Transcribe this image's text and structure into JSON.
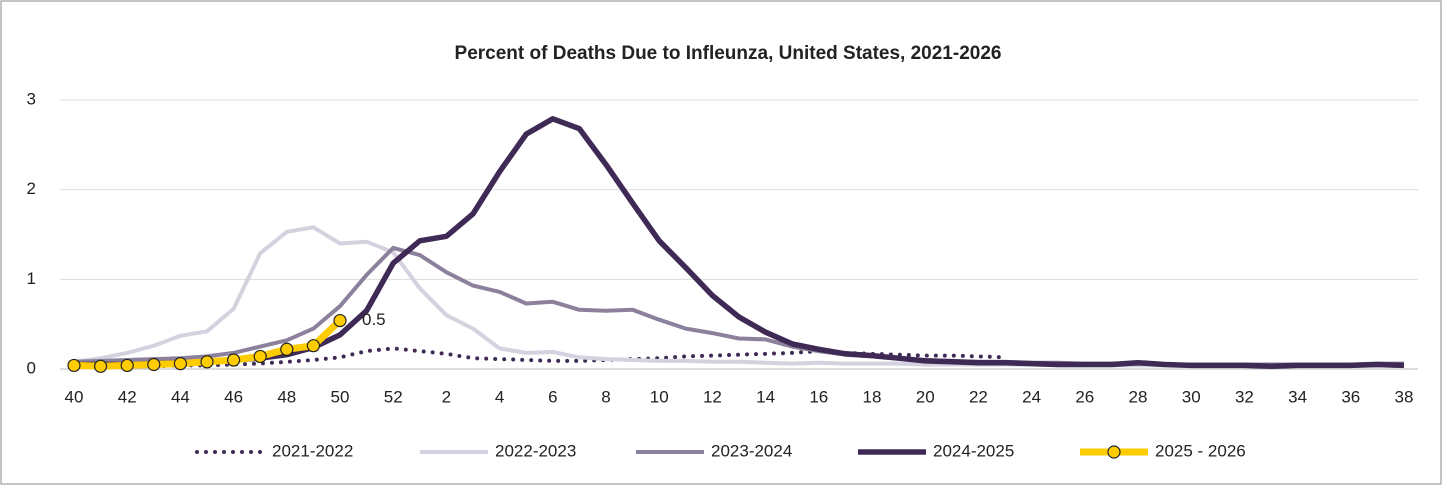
{
  "chart_data": {
    "type": "line",
    "title": "Percent of Deaths Due to Infleunza, United States, 2021-2026",
    "categories": [
      "40",
      null,
      "42",
      null,
      "44",
      null,
      "46",
      null,
      "48",
      null,
      "50",
      null,
      "52",
      null,
      "2",
      null,
      "4",
      null,
      "6",
      null,
      "8",
      null,
      "10",
      null,
      "12",
      null,
      "14",
      null,
      "16",
      null,
      "18",
      null,
      "20",
      null,
      "22",
      null,
      "24",
      null,
      "26",
      null,
      "28",
      null,
      "30",
      null,
      "32",
      null,
      "34",
      null,
      "36",
      null,
      "38"
    ],
    "ylim": [
      0,
      3
    ],
    "yticks": [
      0,
      1,
      2,
      3
    ],
    "grid": true,
    "legend": "bottom",
    "series": [
      {
        "name": "2021-2022",
        "color": "#3f2a56",
        "style": "dotted",
        "values": [
          0.03,
          0.03,
          0.03,
          0.03,
          0.04,
          0.04,
          0.05,
          0.06,
          0.08,
          0.1,
          0.13,
          0.2,
          0.23,
          0.2,
          0.17,
          0.12,
          0.11,
          0.1,
          0.09,
          0.09,
          0.1,
          0.11,
          0.12,
          0.14,
          0.15,
          0.16,
          0.17,
          0.18,
          0.2,
          0.18,
          0.17,
          0.16,
          0.15,
          0.15,
          0.14,
          0.13,
          null,
          null,
          null,
          null,
          null,
          null,
          null,
          null,
          null,
          null,
          null,
          null,
          null,
          null,
          null
        ]
      },
      {
        "name": "2022-2023",
        "color": "#d3d2de",
        "style": "solid",
        "values": [
          0.08,
          0.12,
          0.18,
          0.26,
          0.37,
          0.42,
          0.67,
          1.29,
          1.53,
          1.58,
          1.4,
          1.42,
          1.3,
          0.9,
          0.6,
          0.45,
          0.23,
          0.18,
          0.19,
          0.13,
          0.11,
          0.1,
          0.09,
          0.09,
          0.08,
          0.08,
          0.07,
          0.06,
          0.07,
          0.06,
          0.06,
          0.06,
          0.05,
          0.05,
          0.05,
          0.05,
          0.05,
          0.04,
          0.04,
          0.04,
          0.04,
          0.04,
          0.04,
          0.04,
          0.04,
          0.04,
          0.04,
          0.04,
          0.04,
          0.04,
          0.04
        ]
      },
      {
        "name": "2023-2024",
        "color": "#8c819c",
        "style": "solid",
        "values": [
          0.08,
          0.09,
          0.1,
          0.11,
          0.12,
          0.14,
          0.18,
          0.25,
          0.32,
          0.45,
          0.7,
          1.05,
          1.35,
          1.27,
          1.08,
          0.93,
          0.86,
          0.73,
          0.75,
          0.66,
          0.65,
          0.66,
          0.55,
          0.45,
          0.4,
          0.34,
          0.33,
          0.25,
          0.2,
          0.16,
          0.14,
          0.12,
          0.1,
          0.09,
          0.08,
          0.08,
          0.07,
          0.07,
          0.06,
          0.06,
          0.06,
          0.05,
          0.05,
          0.05,
          0.05,
          0.05,
          0.05,
          0.05,
          0.05,
          0.06,
          0.06
        ]
      },
      {
        "name": "2024-2025",
        "color": "#3f2a56",
        "style": "solid",
        "values": [
          0.05,
          0.05,
          0.05,
          0.06,
          0.07,
          0.08,
          0.1,
          0.12,
          0.16,
          0.24,
          0.38,
          0.65,
          1.18,
          1.43,
          1.48,
          1.73,
          2.2,
          2.62,
          2.79,
          2.68,
          2.28,
          1.85,
          1.43,
          1.13,
          0.82,
          0.58,
          0.41,
          0.28,
          0.22,
          0.17,
          0.15,
          0.12,
          0.09,
          0.08,
          0.07,
          0.07,
          0.06,
          0.05,
          0.05,
          0.05,
          0.07,
          0.05,
          0.04,
          0.04,
          0.04,
          0.03,
          0.04,
          0.04,
          0.04,
          0.05,
          0.04
        ]
      },
      {
        "name": "2025 - 2026",
        "color": "#ffcc00",
        "style": "solid",
        "marker": true,
        "values": [
          0.04,
          0.03,
          0.04,
          0.05,
          0.06,
          0.08,
          0.1,
          0.14,
          0.22,
          0.26,
          0.54,
          null,
          null,
          null,
          null,
          null,
          null,
          null,
          null,
          null,
          null,
          null,
          null,
          null,
          null,
          null,
          null,
          null,
          null,
          null,
          null,
          null,
          null,
          null,
          null,
          null,
          null,
          null,
          null,
          null,
          null,
          null,
          null,
          null,
          null,
          null,
          null,
          null,
          null,
          null,
          null
        ],
        "value_labels": [
          null,
          null,
          null,
          null,
          null,
          null,
          null,
          null,
          null,
          null,
          "0.5",
          null,
          null,
          null,
          null,
          null,
          null,
          null,
          null,
          null,
          null,
          null,
          null,
          null,
          null,
          null,
          null,
          null,
          null,
          null,
          null,
          null,
          null,
          null,
          null,
          null,
          null,
          null,
          null,
          null,
          null,
          null,
          null,
          null,
          null,
          null,
          null,
          null,
          null,
          null,
          null
        ]
      }
    ]
  }
}
